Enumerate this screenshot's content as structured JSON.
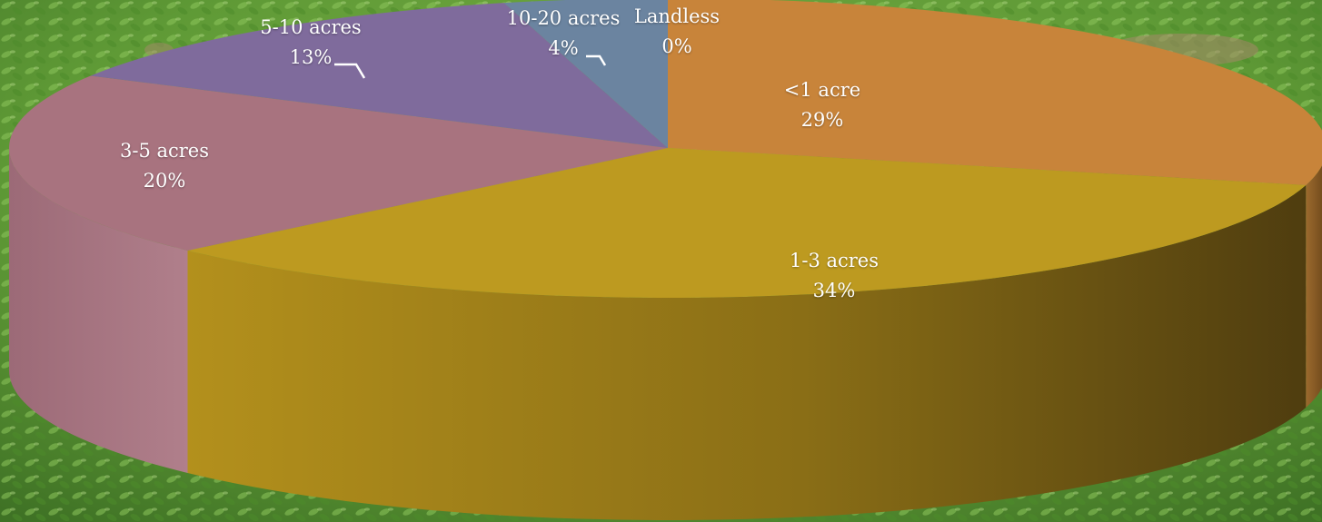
{
  "chart_data": {
    "type": "pie",
    "style": "3d",
    "background": "grass-photo",
    "categories": [
      "<1 acre",
      "1-3 acres",
      "3-5 acres",
      "5-10 acres",
      "10-20 acres",
      "Landless"
    ],
    "values": [
      29,
      34,
      20,
      13,
      4,
      0
    ],
    "value_labels": [
      "29%",
      "34%",
      "20%",
      "13%",
      "4%",
      "0%"
    ],
    "colors": [
      "#c8843a",
      "#bd9a20",
      "#a8737f",
      "#7f6b9c",
      "#6b84a0",
      "#6b84a0"
    ],
    "legend": "none"
  }
}
